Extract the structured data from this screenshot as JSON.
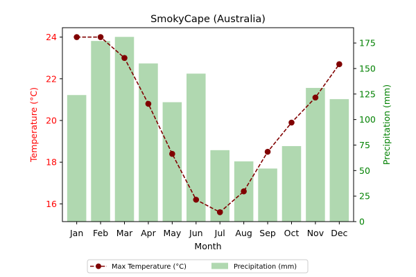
{
  "chart_data": {
    "type": "bar",
    "title": "SmokyCape (Australia)",
    "xlabel": "Month",
    "categories": [
      "Jan",
      "Feb",
      "Mar",
      "Apr",
      "May",
      "Jun",
      "Jul",
      "Aug",
      "Sep",
      "Oct",
      "Nov",
      "Dec"
    ],
    "series": [
      {
        "name": "Max Temperature (°C)",
        "type": "line",
        "axis": "left",
        "color": "#800000",
        "values": [
          24.0,
          24.0,
          23.0,
          20.8,
          18.4,
          16.2,
          15.6,
          16.6,
          18.5,
          19.9,
          21.1,
          22.7
        ]
      },
      {
        "name": "Precipitation (mm)",
        "type": "bar",
        "axis": "right",
        "color": "#b0d8b0",
        "values": [
          124,
          177,
          181,
          155,
          117,
          145,
          70,
          59,
          52,
          74,
          131,
          120
        ]
      }
    ],
    "left_axis": {
      "label": "Temperature (°C)",
      "color": "#ff0000",
      "ylim": [
        15.15,
        24.45
      ],
      "ticks": [
        16,
        18,
        20,
        22,
        24
      ]
    },
    "right_axis": {
      "label": "Precipitation (mm)",
      "color": "#008000",
      "ylim": [
        0,
        190
      ],
      "ticks": [
        0,
        25,
        50,
        75,
        100,
        125,
        150,
        175
      ]
    },
    "grid": false,
    "legend_position": "bottom-center, below plot"
  }
}
